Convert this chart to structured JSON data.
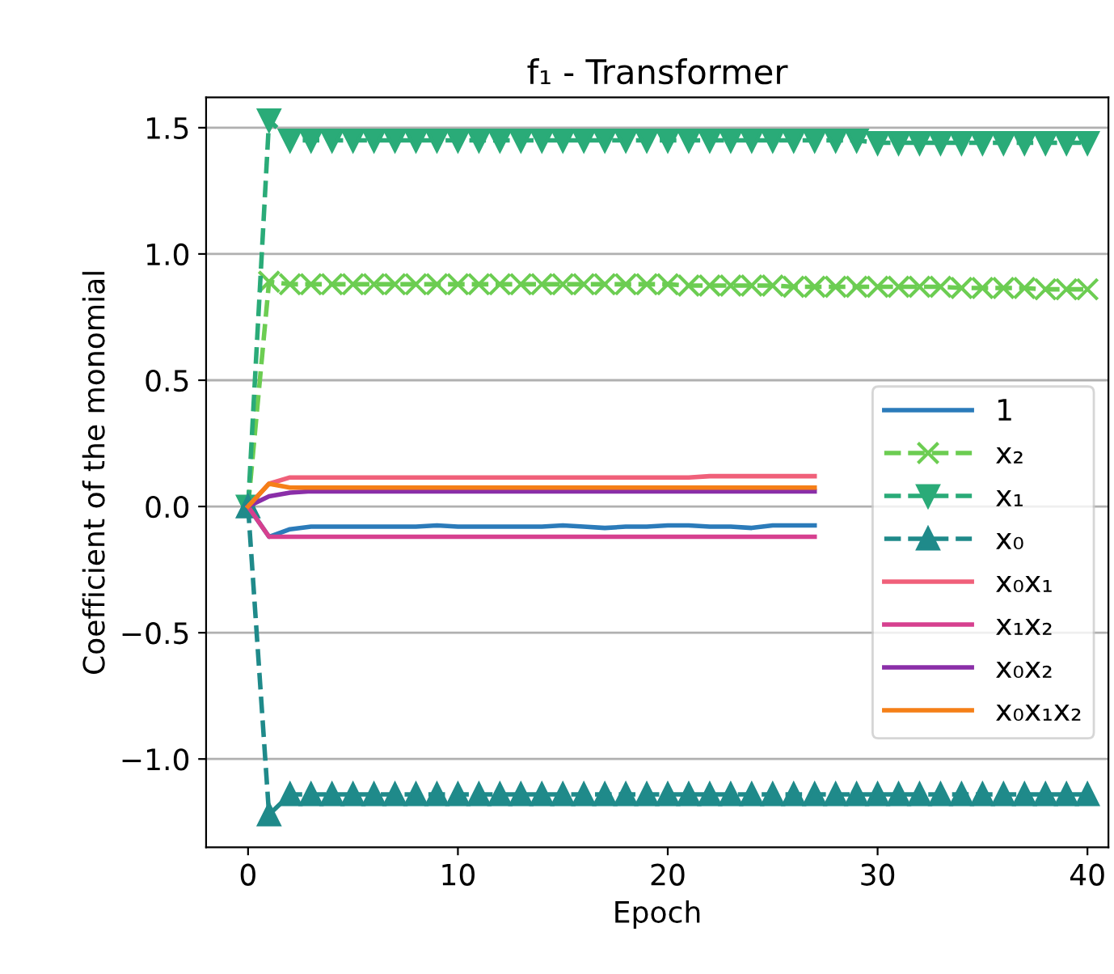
{
  "chart_data": {
    "type": "line",
    "title": "f₁ - Transformer",
    "xlabel": "Epoch",
    "ylabel": "Coefficient of the monomial",
    "x": [
      0,
      1,
      2,
      3,
      4,
      5,
      6,
      7,
      8,
      9,
      10,
      11,
      12,
      13,
      14,
      15,
      16,
      17,
      18,
      19,
      20,
      21,
      22,
      23,
      24,
      25,
      26,
      27,
      28,
      29,
      30,
      31,
      32,
      33,
      34,
      35,
      36,
      37,
      38,
      39,
      40
    ],
    "xlim": [
      -2,
      41
    ],
    "xticks": [
      0,
      10,
      20,
      30,
      40
    ],
    "ylim": [
      -1.35,
      1.62
    ],
    "yticks": [
      {
        "value": -1.0,
        "label": "−1.0"
      },
      {
        "value": -0.5,
        "label": "−0.5"
      },
      {
        "value": 0.0,
        "label": "0.0"
      },
      0.5,
      {
        "value": 1.0,
        "label": "1.0"
      },
      1.5
    ],
    "grid": "y",
    "legend": "right",
    "series": [
      {
        "name": "1",
        "color": "#2b7bba",
        "marker": "none",
        "line_style": "solid",
        "values": [
          0,
          -0.12,
          -0.09,
          -0.08,
          -0.08,
          -0.08,
          -0.08,
          -0.08,
          -0.08,
          -0.075,
          -0.08,
          -0.08,
          -0.08,
          -0.08,
          -0.08,
          -0.075,
          -0.08,
          -0.085,
          -0.08,
          -0.08,
          -0.075,
          -0.075,
          -0.08,
          -0.08,
          -0.085,
          -0.075,
          -0.075,
          -0.075,
          null,
          null,
          null,
          null,
          null,
          null,
          null,
          null,
          null,
          null,
          null,
          null,
          null
        ]
      },
      {
        "name": "x₂",
        "color": "#6ccd52",
        "marker": "cross",
        "line_style": "dashed",
        "values": [
          0,
          0.89,
          0.88,
          0.88,
          0.88,
          0.88,
          0.88,
          0.88,
          0.88,
          0.88,
          0.88,
          0.88,
          0.88,
          0.88,
          0.88,
          0.88,
          0.88,
          0.88,
          0.88,
          0.88,
          0.88,
          0.875,
          0.875,
          0.875,
          0.875,
          0.875,
          0.87,
          0.87,
          0.87,
          0.87,
          0.87,
          0.87,
          0.87,
          0.87,
          0.865,
          0.865,
          0.865,
          0.865,
          0.86,
          0.86,
          0.86
        ]
      },
      {
        "name": "x₁",
        "color": "#2aab78",
        "marker": "triangle_down",
        "line_style": "dashed",
        "values": [
          0,
          1.53,
          1.45,
          1.45,
          1.45,
          1.45,
          1.45,
          1.45,
          1.45,
          1.45,
          1.45,
          1.45,
          1.45,
          1.45,
          1.45,
          1.45,
          1.45,
          1.45,
          1.45,
          1.45,
          1.45,
          1.45,
          1.45,
          1.45,
          1.45,
          1.45,
          1.45,
          1.45,
          1.45,
          1.45,
          1.44,
          1.44,
          1.44,
          1.44,
          1.44,
          1.44,
          1.44,
          1.44,
          1.44,
          1.44,
          1.44
        ]
      },
      {
        "name": "x₀",
        "color": "#1f8a8a",
        "marker": "triangle",
        "line_style": "dashed",
        "values": [
          0,
          -1.22,
          -1.14,
          -1.14,
          -1.14,
          -1.14,
          -1.14,
          -1.14,
          -1.14,
          -1.14,
          -1.14,
          -1.14,
          -1.14,
          -1.14,
          -1.14,
          -1.14,
          -1.14,
          -1.14,
          -1.14,
          -1.14,
          -1.14,
          -1.14,
          -1.14,
          -1.14,
          -1.14,
          -1.14,
          -1.14,
          -1.14,
          -1.14,
          -1.14,
          -1.14,
          -1.14,
          -1.14,
          -1.14,
          -1.14,
          -1.14,
          -1.14,
          -1.14,
          -1.14,
          -1.14,
          -1.14
        ]
      },
      {
        "name": "x₀x₁",
        "color": "#f0607a",
        "marker": "none",
        "line_style": "solid",
        "values": [
          0,
          0.09,
          0.115,
          0.115,
          0.115,
          0.115,
          0.115,
          0.115,
          0.115,
          0.115,
          0.115,
          0.115,
          0.115,
          0.115,
          0.115,
          0.115,
          0.115,
          0.115,
          0.115,
          0.115,
          0.115,
          0.115,
          0.12,
          0.12,
          0.12,
          0.12,
          0.12,
          0.12,
          null,
          null,
          null,
          null,
          null,
          null,
          null,
          null,
          null,
          null,
          null,
          null,
          null
        ]
      },
      {
        "name": "x₁x₂",
        "color": "#d6408f",
        "marker": "none",
        "line_style": "solid",
        "values": [
          0,
          -0.12,
          -0.12,
          -0.12,
          -0.12,
          -0.12,
          -0.12,
          -0.12,
          -0.12,
          -0.12,
          -0.12,
          -0.12,
          -0.12,
          -0.12,
          -0.12,
          -0.12,
          -0.12,
          -0.12,
          -0.12,
          -0.12,
          -0.12,
          -0.12,
          -0.12,
          -0.12,
          -0.12,
          -0.12,
          -0.12,
          -0.12,
          null,
          null,
          null,
          null,
          null,
          null,
          null,
          null,
          null,
          null,
          null,
          null,
          null
        ]
      },
      {
        "name": "x₀x₂",
        "color": "#8a2ea8",
        "marker": "none",
        "line_style": "solid",
        "values": [
          0,
          0.04,
          0.055,
          0.06,
          0.06,
          0.06,
          0.06,
          0.06,
          0.06,
          0.06,
          0.06,
          0.06,
          0.06,
          0.06,
          0.06,
          0.06,
          0.06,
          0.06,
          0.06,
          0.06,
          0.06,
          0.06,
          0.06,
          0.06,
          0.06,
          0.06,
          0.06,
          0.06,
          null,
          null,
          null,
          null,
          null,
          null,
          null,
          null,
          null,
          null,
          null,
          null,
          null
        ]
      },
      {
        "name": "x₀x₁x₂",
        "color": "#f57f17",
        "marker": "none",
        "line_style": "solid",
        "values": [
          0,
          0.09,
          0.075,
          0.075,
          0.075,
          0.075,
          0.075,
          0.075,
          0.075,
          0.075,
          0.075,
          0.075,
          0.075,
          0.075,
          0.075,
          0.075,
          0.075,
          0.075,
          0.075,
          0.075,
          0.075,
          0.075,
          0.075,
          0.075,
          0.075,
          0.075,
          0.075,
          0.075,
          null,
          null,
          null,
          null,
          null,
          null,
          null,
          null,
          null,
          null,
          null,
          null,
          null
        ]
      }
    ]
  }
}
